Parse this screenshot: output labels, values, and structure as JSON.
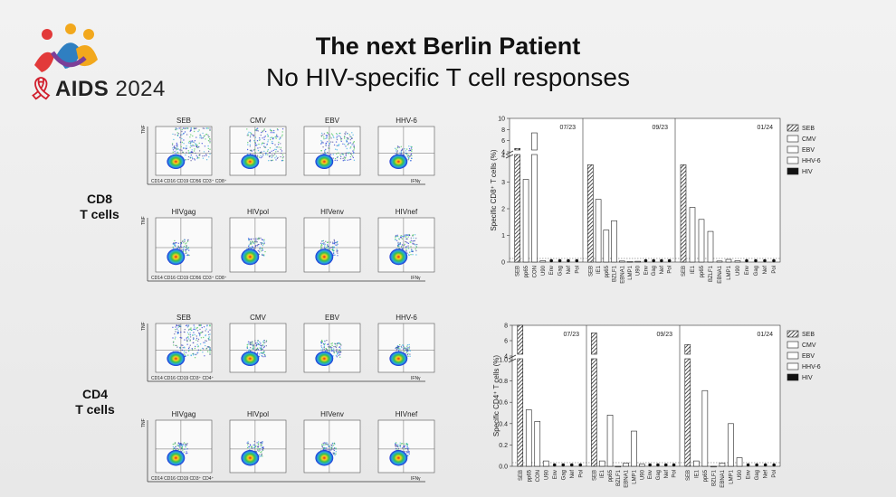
{
  "logo": {
    "brand_word": "AIDS",
    "year": "2024",
    "colors": [
      "#e23a3a",
      "#f2a81d",
      "#2f7fc1",
      "#7c3f98"
    ]
  },
  "title": "The next Berlin Patient",
  "subtitle": "No HIV-specific T cell responses",
  "cd8_label": [
    "CD8",
    "T cells"
  ],
  "cd4_label": [
    "CD4",
    "T cells"
  ],
  "flow": {
    "cd8_row1": [
      "SEB",
      "CMV",
      "EBV",
      "HHV-6"
    ],
    "cd8_row2": [
      "HIVgag",
      "HIVpol",
      "HIVenv",
      "HIVnef"
    ],
    "cd8_xaxis": "CD14 CD16 CD19 CD56 CD3⁺ CD8⁺",
    "cd4_row1": [
      "SEB",
      "CMV",
      "EBV",
      "HHV-6"
    ],
    "cd4_row2": [
      "HIVgag",
      "HIVpol",
      "HIVenv",
      "HIVnef"
    ],
    "cd4_xaxis": "CD14 CD16 CD19 CD3⁺ CD4⁺",
    "yaxis": "TNF",
    "xunit": "IFNγ"
  },
  "chart_data": [
    {
      "type": "bar",
      "ylabel": "Specific CD8⁺ T cells (%)",
      "yticks_upper": [
        "4",
        "6",
        "8",
        "10"
      ],
      "yticks_lower": [
        "0",
        "1",
        "2",
        "3",
        "4"
      ],
      "ylim_lower": [
        0,
        4
      ],
      "ylim_upper": [
        4,
        10
      ],
      "panels": [
        {
          "label": "07/23",
          "categories": [
            "SEB",
            "pp65",
            "CON",
            "U90",
            "Env",
            "Gag",
            "Nef",
            "Pol"
          ],
          "values": [
            4.6,
            3.1,
            7.4,
            0.05,
            0.0,
            0.0,
            0.0,
            0.0
          ],
          "kinds": [
            "SEB",
            "CMV",
            "EBV",
            "HHV-6",
            "HIV",
            "HIV",
            "HIV",
            "HIV"
          ]
        },
        {
          "label": "09/23",
          "categories": [
            "SEB",
            "IE1",
            "pp65",
            "BZLF1",
            "EBNA1",
            "LMP1",
            "U90",
            "Env",
            "Gag",
            "Nef",
            "Pol"
          ],
          "values": [
            3.65,
            2.35,
            1.2,
            1.55,
            0.04,
            0.02,
            0.03,
            0.0,
            0.0,
            0.0,
            0.0
          ],
          "kinds": [
            "SEB",
            "CMV",
            "CMV",
            "EBV",
            "EBV",
            "EBV",
            "HHV-6",
            "HIV",
            "HIV",
            "HIV",
            "HIV"
          ]
        },
        {
          "label": "01/24",
          "categories": [
            "SEB",
            "IE1",
            "pp65",
            "BZLF1",
            "EBNA1",
            "LMP1",
            "U90",
            "Env",
            "Gag",
            "Nef",
            "Pol"
          ],
          "values": [
            3.65,
            2.05,
            1.6,
            1.15,
            0.04,
            0.1,
            0.05,
            0.0,
            0.0,
            0.0,
            0.0
          ],
          "kinds": [
            "SEB",
            "CMV",
            "CMV",
            "EBV",
            "EBV",
            "EBV",
            "HHV-6",
            "HIV",
            "HIV",
            "HIV",
            "HIV"
          ]
        }
      ],
      "legend": [
        "SEB",
        "CMV",
        "EBV",
        "HHV-6",
        "HIV"
      ]
    },
    {
      "type": "bar",
      "ylabel": "Specific CD4⁺ T cells (%)",
      "yticks_upper": [
        "4",
        "6",
        "8"
      ],
      "yticks_lower": [
        "0.0",
        "0.2",
        "0.4",
        "0.6",
        "0.8",
        "1.0"
      ],
      "ylim_lower": [
        0,
        1.0
      ],
      "ylim_upper": [
        4,
        8
      ],
      "panels": [
        {
          "label": "07/23",
          "categories": [
            "SEB",
            "pp65",
            "CON",
            "U90",
            "Env",
            "Gag",
            "Nef",
            "Pol"
          ],
          "values": [
            8.0,
            0.53,
            0.42,
            0.05,
            0.0,
            0.0,
            0.0,
            0.0
          ],
          "kinds": [
            "SEB",
            "CMV",
            "EBV",
            "HHV-6",
            "HIV",
            "HIV",
            "HIV",
            "HIV"
          ]
        },
        {
          "label": "09/23",
          "categories": [
            "SEB",
            "IE1",
            "pp65",
            "BZLF1",
            "EBNA1",
            "LMP1",
            "U90",
            "Env",
            "Gag",
            "Nef",
            "Pol"
          ],
          "values": [
            7.0,
            0.05,
            0.48,
            0.0,
            0.03,
            0.33,
            0.02,
            0.0,
            0.0,
            0.0,
            0.0
          ],
          "kinds": [
            "SEB",
            "CMV",
            "CMV",
            "EBV",
            "EBV",
            "EBV",
            "HHV-6",
            "HIV",
            "HIV",
            "HIV",
            "HIV"
          ]
        },
        {
          "label": "01/24",
          "categories": [
            "SEB",
            "IE1",
            "pp65",
            "BZLF1",
            "EBNA1",
            "LMP1",
            "U90",
            "Env",
            "Gag",
            "Nef",
            "Pol"
          ],
          "values": [
            5.5,
            0.05,
            0.71,
            0.0,
            0.03,
            0.4,
            0.08,
            0.0,
            0.0,
            0.0,
            0.0
          ],
          "kinds": [
            "SEB",
            "CMV",
            "CMV",
            "EBV",
            "EBV",
            "EBV",
            "HHV-6",
            "HIV",
            "HIV",
            "HIV",
            "HIV"
          ]
        }
      ],
      "legend": [
        "SEB",
        "CMV",
        "EBV",
        "HHV-6",
        "HIV"
      ]
    }
  ]
}
